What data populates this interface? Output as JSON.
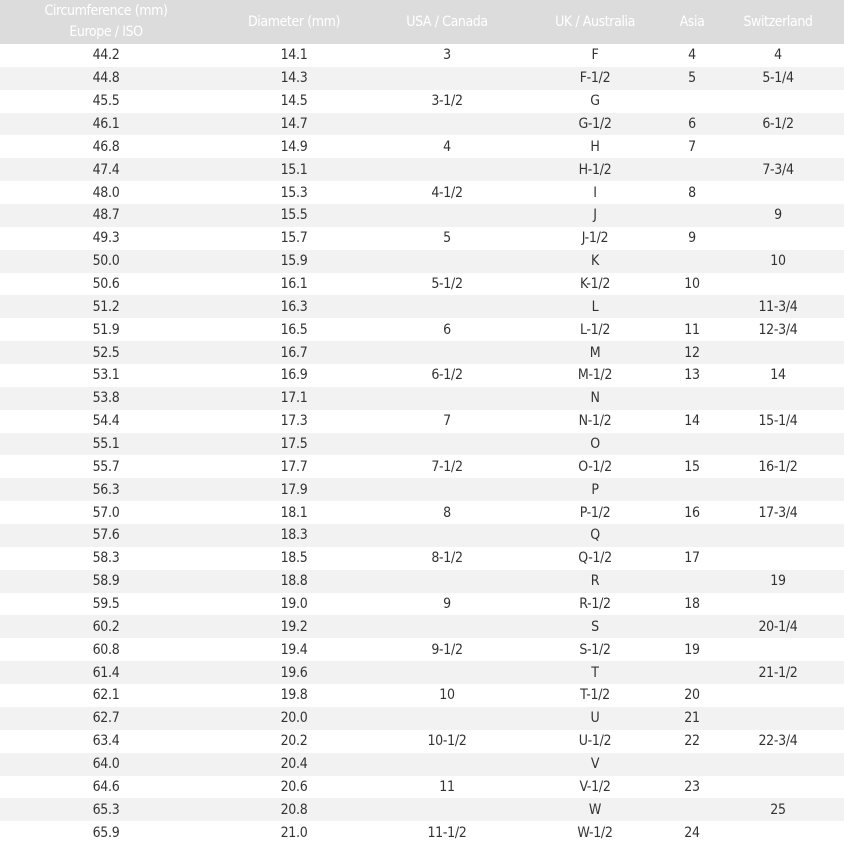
{
  "headers": [
    [
      "Circumference (mm)",
      "Europe / ISO"
    ],
    [
      "Diameter (mm)"
    ],
    [
      "USA / Canada"
    ],
    [
      "UK / Australia"
    ],
    [
      "Asia"
    ],
    [
      "Switzerland"
    ]
  ],
  "rows": [
    [
      "44.2",
      "14.1",
      "3",
      "F",
      "4",
      "4"
    ],
    [
      "44.8",
      "14.3",
      "",
      "F-1/2",
      "5",
      "5-1/4"
    ],
    [
      "45.5",
      "14.5",
      "3-1/2",
      "G",
      "",
      ""
    ],
    [
      "46.1",
      "14.7",
      "",
      "G-1/2",
      "6",
      "6-1/2"
    ],
    [
      "46.8",
      "14.9",
      "4",
      "H",
      "7",
      ""
    ],
    [
      "47.4",
      "15.1",
      "",
      "H-1/2",
      "",
      "7-3/4"
    ],
    [
      "48.0",
      "15.3",
      "4-1/2",
      "I",
      "8",
      ""
    ],
    [
      "48.7",
      "15.5",
      "",
      "J",
      "",
      "9"
    ],
    [
      "49.3",
      "15.7",
      "5",
      "J-1/2",
      "9",
      ""
    ],
    [
      "50.0",
      "15.9",
      "",
      "K",
      "",
      "10"
    ],
    [
      "50.6",
      "16.1",
      "5-1/2",
      "K-1/2",
      "10",
      ""
    ],
    [
      "51.2",
      "16.3",
      "",
      "L",
      "",
      "11-3/4"
    ],
    [
      "51.9",
      "16.5",
      "6",
      "L-1/2",
      "11",
      "12-3/4"
    ],
    [
      "52.5",
      "16.7",
      "",
      "M",
      "12",
      ""
    ],
    [
      "53.1",
      "16.9",
      "6-1/2",
      "M-1/2",
      "13",
      "14"
    ],
    [
      "53.8",
      "17.1",
      "",
      "N",
      "",
      ""
    ],
    [
      "54.4",
      "17.3",
      "7",
      "N-1/2",
      "14",
      "15-1/4"
    ],
    [
      "55.1",
      "17.5",
      "",
      "O",
      "",
      ""
    ],
    [
      "55.7",
      "17.7",
      "7-1/2",
      "O-1/2",
      "15",
      "16-1/2"
    ],
    [
      "56.3",
      "17.9",
      "",
      "P",
      "",
      ""
    ],
    [
      "57.0",
      "18.1",
      "8",
      "P-1/2",
      "16",
      "17-3/4"
    ],
    [
      "57.6",
      "18.3",
      "",
      "Q",
      "",
      ""
    ],
    [
      "58.3",
      "18.5",
      "8-1/2",
      "Q-1/2",
      "17",
      ""
    ],
    [
      "58.9",
      "18.8",
      "",
      "R",
      "",
      "19"
    ],
    [
      "59.5",
      "19.0",
      "9",
      "R-1/2",
      "18",
      ""
    ],
    [
      "60.2",
      "19.2",
      "",
      "S",
      "",
      "20-1/4"
    ],
    [
      "60.8",
      "19.4",
      "9-1/2",
      "S-1/2",
      "19",
      ""
    ],
    [
      "61.4",
      "19.6",
      "",
      "T",
      "",
      "21-1/2"
    ],
    [
      "62.1",
      "19.8",
      "10",
      "T-1/2",
      "20",
      ""
    ],
    [
      "62.7",
      "20.0",
      "",
      "U",
      "21",
      ""
    ],
    [
      "63.4",
      "20.2",
      "10-1/2",
      "U-1/2",
      "22",
      "22-3/4"
    ],
    [
      "64.0",
      "20.4",
      "",
      "V",
      "",
      ""
    ],
    [
      "64.6",
      "20.6",
      "11",
      "V-1/2",
      "23",
      ""
    ],
    [
      "65.3",
      "20.8",
      "",
      "W",
      "",
      "25"
    ],
    [
      "65.9",
      "21.0",
      "11-1/2",
      "W-1/2",
      "24",
      ""
    ]
  ]
}
